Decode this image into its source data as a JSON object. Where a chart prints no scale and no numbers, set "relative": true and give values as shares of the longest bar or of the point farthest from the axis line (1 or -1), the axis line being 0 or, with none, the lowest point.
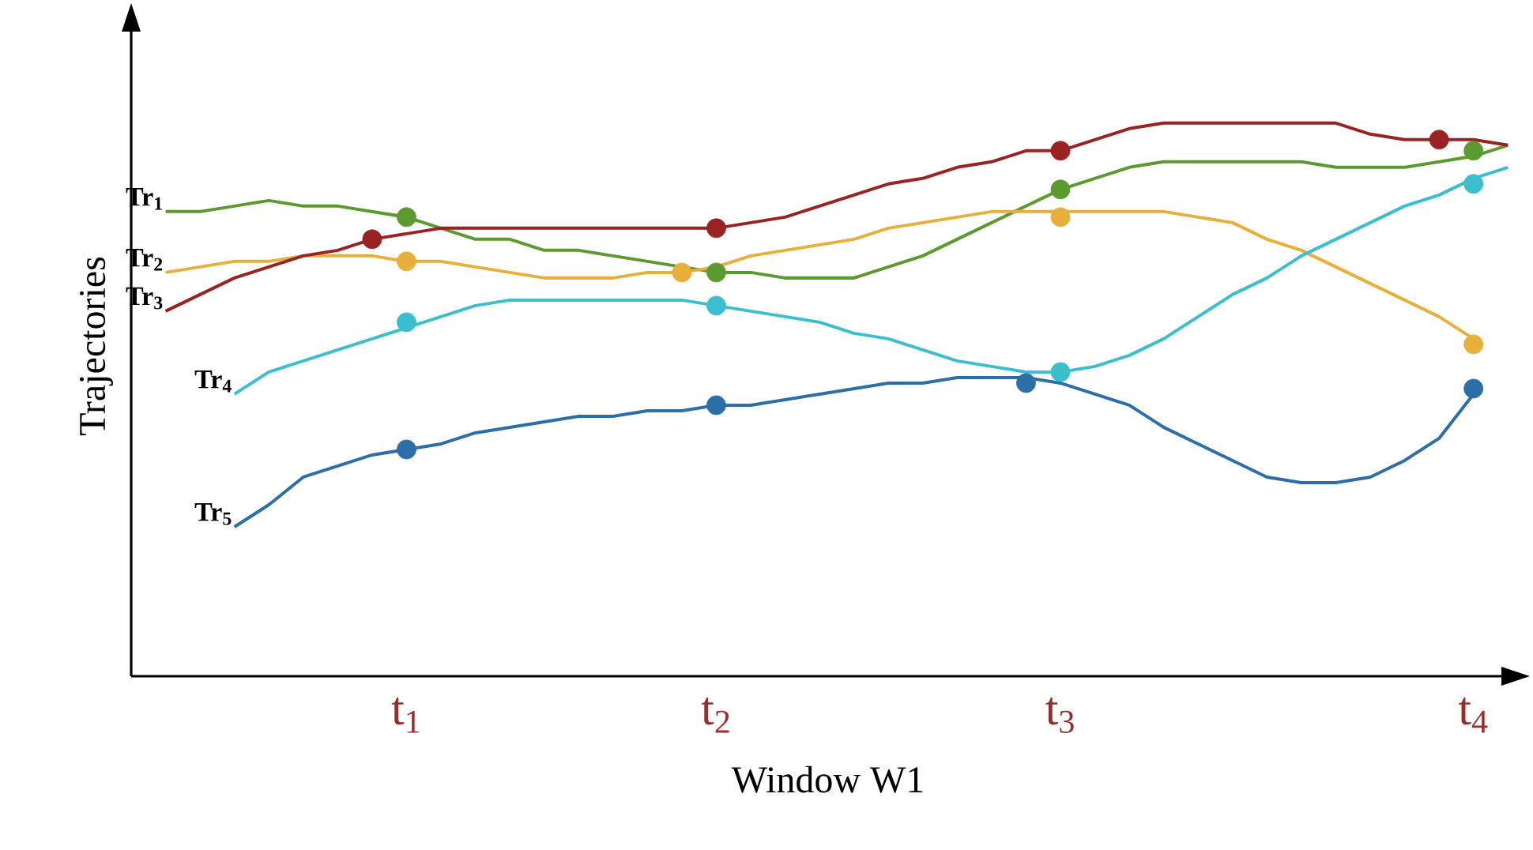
{
  "chart_data": {
    "type": "line",
    "relative": true,
    "xlabel": "Window W1",
    "ylabel": "Trajectories",
    "categories": [
      null,
      null,
      null,
      null,
      null,
      null,
      null,
      null,
      "t$_{1}$",
      null,
      null,
      null,
      null,
      null,
      null,
      null,
      null,
      "t$_{2}$",
      null,
      null,
      null,
      null,
      null,
      null,
      null,
      null,
      null,
      "t$_{3}$",
      null,
      null,
      null,
      null,
      null,
      null,
      null,
      null,
      null,
      null,
      null,
      "t$_{4}$",
      null
    ],
    "series": [
      {
        "name": "Tr$_{1}$",
        "marker": "none",
        "color": "#5a9a2e",
        "values": [
          null,
          0.84,
          0.84,
          0.85,
          0.86,
          0.85,
          0.85,
          0.84,
          0.83,
          0.81,
          0.79,
          0.79,
          0.77,
          0.77,
          0.76,
          0.75,
          0.74,
          0.73,
          0.73,
          0.72,
          0.72,
          0.72,
          0.74,
          0.76,
          0.79,
          0.82,
          0.85,
          0.88,
          0.9,
          0.92,
          0.93,
          0.93,
          0.93,
          0.93,
          0.93,
          0.92,
          0.92,
          0.92,
          0.93,
          0.94,
          0.96
        ]
      },
      {
        "name": "Tr$_{2}$",
        "marker": "none",
        "color": "#e8b03a",
        "values": [
          null,
          0.73,
          0.74,
          0.75,
          0.75,
          0.76,
          0.76,
          0.76,
          0.75,
          0.75,
          0.74,
          0.73,
          0.72,
          0.72,
          0.72,
          0.73,
          0.73,
          0.74,
          0.76,
          0.77,
          0.78,
          0.79,
          0.81,
          0.82,
          0.83,
          0.84,
          0.84,
          0.84,
          0.84,
          0.84,
          0.84,
          0.83,
          0.82,
          0.79,
          0.77,
          0.74,
          0.71,
          0.68,
          0.65,
          0.61,
          null
        ]
      },
      {
        "name": "Tr$_{3}$",
        "marker": "none",
        "color": "#9b2222",
        "values": [
          null,
          0.66,
          0.69,
          0.72,
          0.74,
          0.76,
          0.77,
          0.79,
          0.8,
          0.81,
          0.81,
          0.81,
          0.81,
          0.81,
          0.81,
          0.81,
          0.81,
          0.81,
          0.82,
          0.83,
          0.85,
          0.87,
          0.89,
          0.9,
          0.92,
          0.93,
          0.95,
          0.95,
          0.97,
          0.99,
          1.0,
          1.0,
          1.0,
          1.0,
          1.0,
          1.0,
          0.98,
          0.97,
          0.97,
          0.97,
          0.96
        ]
      },
      {
        "name": "Tr$_{4}$",
        "marker": "none",
        "color": "#3bbfcf",
        "values": [
          null,
          null,
          null,
          0.51,
          0.55,
          0.57,
          0.59,
          0.61,
          0.63,
          0.65,
          0.67,
          0.68,
          0.68,
          0.68,
          0.68,
          0.68,
          0.68,
          0.67,
          0.66,
          0.65,
          0.64,
          0.62,
          0.61,
          0.59,
          0.57,
          0.56,
          0.55,
          0.55,
          0.56,
          0.58,
          0.61,
          0.65,
          0.69,
          0.72,
          0.76,
          0.79,
          0.82,
          0.85,
          0.87,
          0.9,
          0.92
        ]
      },
      {
        "name": "Tr$_{5}$",
        "marker": "none",
        "color": "#2b6ea8",
        "values": [
          null,
          null,
          null,
          0.27,
          0.31,
          0.36,
          0.38,
          0.4,
          0.41,
          0.42,
          0.44,
          0.45,
          0.46,
          0.47,
          0.47,
          0.48,
          0.48,
          0.49,
          0.49,
          0.5,
          0.51,
          0.52,
          0.53,
          0.53,
          0.54,
          0.54,
          0.54,
          0.53,
          0.51,
          0.49,
          0.45,
          0.42,
          0.39,
          0.36,
          0.35,
          0.35,
          0.36,
          0.39,
          0.43,
          0.51,
          null
        ]
      },
      {
        "type": "scatter",
        "marker": "circle",
        "color": "#5a9a2e",
        "values": [
          null,
          null,
          null,
          null,
          null,
          null,
          null,
          null,
          0.83,
          null,
          null,
          null,
          null,
          null,
          null,
          null,
          null,
          0.73,
          null,
          null,
          null,
          null,
          null,
          null,
          null,
          null,
          null,
          0.88,
          null,
          null,
          null,
          null,
          null,
          null,
          null,
          null,
          null,
          null,
          null,
          0.95,
          null
        ]
      },
      {
        "type": "scatter",
        "marker": "circle",
        "color": "#e8b03a",
        "values": [
          null,
          null,
          null,
          null,
          null,
          null,
          null,
          null,
          0.75,
          null,
          null,
          null,
          null,
          null,
          null,
          null,
          0.73,
          null,
          null,
          null,
          null,
          null,
          null,
          null,
          null,
          null,
          null,
          0.83,
          null,
          null,
          null,
          null,
          null,
          null,
          null,
          null,
          null,
          null,
          null,
          0.6,
          null
        ]
      },
      {
        "type": "scatter",
        "marker": "circle",
        "color": "#9b2222",
        "values": [
          null,
          null,
          null,
          null,
          null,
          null,
          null,
          0.79,
          null,
          null,
          null,
          null,
          null,
          null,
          null,
          null,
          null,
          0.81,
          null,
          null,
          null,
          null,
          null,
          null,
          null,
          null,
          null,
          0.95,
          null,
          null,
          null,
          null,
          null,
          null,
          null,
          null,
          null,
          null,
          0.97,
          null,
          null
        ]
      },
      {
        "type": "scatter",
        "marker": "circle",
        "color": "#3bbfcf",
        "values": [
          null,
          null,
          null,
          null,
          null,
          null,
          null,
          null,
          0.64,
          null,
          null,
          null,
          null,
          null,
          null,
          null,
          null,
          0.67,
          null,
          null,
          null,
          null,
          null,
          null,
          null,
          null,
          null,
          0.55,
          null,
          null,
          null,
          null,
          null,
          null,
          null,
          null,
          null,
          null,
          null,
          0.89,
          null
        ]
      },
      {
        "type": "scatter",
        "marker": "circle",
        "color": "#2b6ea8",
        "values": [
          null,
          null,
          null,
          null,
          null,
          null,
          null,
          null,
          0.41,
          null,
          null,
          null,
          null,
          null,
          null,
          null,
          null,
          0.49,
          null,
          null,
          null,
          null,
          null,
          null,
          null,
          null,
          0.53,
          null,
          null,
          null,
          null,
          null,
          null,
          null,
          null,
          null,
          null,
          null,
          null,
          0.52,
          null
        ]
      }
    ]
  }
}
